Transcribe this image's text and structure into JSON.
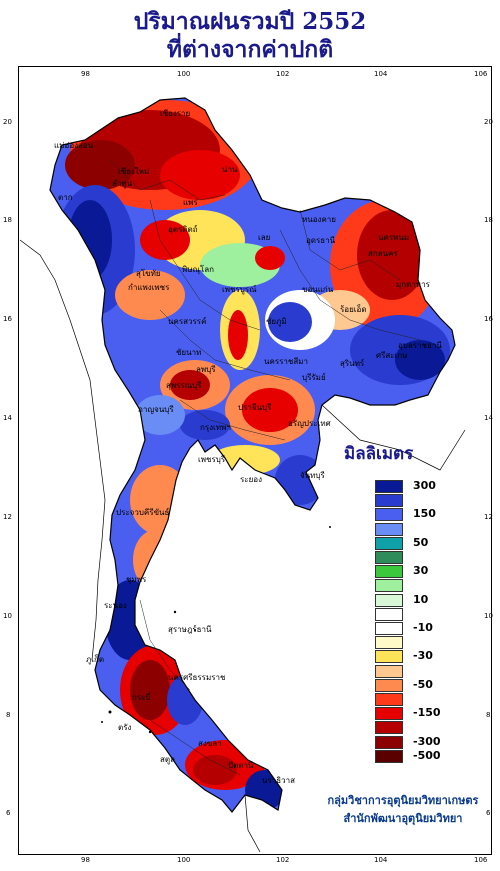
{
  "title": {
    "line1": "ปริมาณฝนรวมปี 2552",
    "line2": "ที่ต่างจากค่าปกติ"
  },
  "axes": {
    "lon_ticks": [
      "98",
      "100",
      "102",
      "104",
      "106"
    ],
    "lat_ticks": [
      "20",
      "18",
      "16",
      "14",
      "12",
      "10",
      "8",
      "6"
    ]
  },
  "legend": {
    "title": "มิลลิเมตร",
    "items": [
      {
        "label": "300",
        "color": "#0a1a96"
      },
      {
        "label": "",
        "color": "#2a3ccf"
      },
      {
        "label": "150",
        "color": "#4a5ef0"
      },
      {
        "label": "",
        "color": "#6a8cf5"
      },
      {
        "label": "50",
        "color": "#10a0a8"
      },
      {
        "label": "",
        "color": "#2e8c5a"
      },
      {
        "label": "30",
        "color": "#3cc83c"
      },
      {
        "label": "",
        "color": "#9ef09e"
      },
      {
        "label": "10",
        "color": "#d8f8d8"
      },
      {
        "label": "",
        "color": "#ffffff"
      },
      {
        "label": "-10",
        "color": "#ffffff"
      },
      {
        "label": "",
        "color": "#fffac8"
      },
      {
        "label": "-30",
        "color": "#ffe45a"
      },
      {
        "label": "",
        "color": "#ffc890"
      },
      {
        "label": "-50",
        "color": "#ff8a50"
      },
      {
        "label": "",
        "color": "#ff3a1a"
      },
      {
        "label": "-150",
        "color": "#e60000"
      },
      {
        "label": "",
        "color": "#b40000"
      },
      {
        "label": "-300",
        "color": "#8c0000"
      },
      {
        "label": "-500",
        "color": "#5a0000"
      }
    ]
  },
  "credit": {
    "line1": "กลุ่มวิชาการอุตุนิยมวิทยาเกษตร",
    "line2": "สำนักพัฒนาอุตุนิยมวิทยา"
  },
  "places": [
    "เชียงราย",
    "แม่ฮ่องสอน",
    "เชียงใหม่",
    "ลำพูน",
    "น่าน",
    "แพร่",
    "อุตรดิตถ์",
    "ตาก",
    "สุโขทัย",
    "พิษณุโลก",
    "กำแพงเพชร",
    "เลย",
    "อุดรธานี",
    "หนองคาย",
    "นครพนม",
    "สกลนคร",
    "มุกดาหาร",
    "ขอนแก่น",
    "ชัยภูมิ",
    "เพชรบูรณ์",
    "นครสวรรค์",
    "ร้อยเอ็ด",
    "ลพบุรี",
    "ชัยนาท",
    "สุพรรณบุรี",
    "กาญจนบุรี",
    "นครราชสีมา",
    "สุรินทร์",
    "ศรีสะเกษ",
    "อุบลราชธานี",
    "บุรีรัมย์",
    "ปราจีนบุรี",
    "อรัญประเทศ",
    "ระยอง",
    "จันทบุรี",
    "เพชรบุรี",
    "ประจวบคีรีขันธ์",
    "ชุมพร",
    "ระนอง",
    "สุราษฎร์ธานี",
    "นครศรีธรรมราช",
    "ภูเก็ต",
    "กระบี่",
    "ตรัง",
    "สงขลา",
    "ปัตตานี",
    "นราธิวาส",
    "สตูล",
    "กรุงเทพฯ"
  ]
}
